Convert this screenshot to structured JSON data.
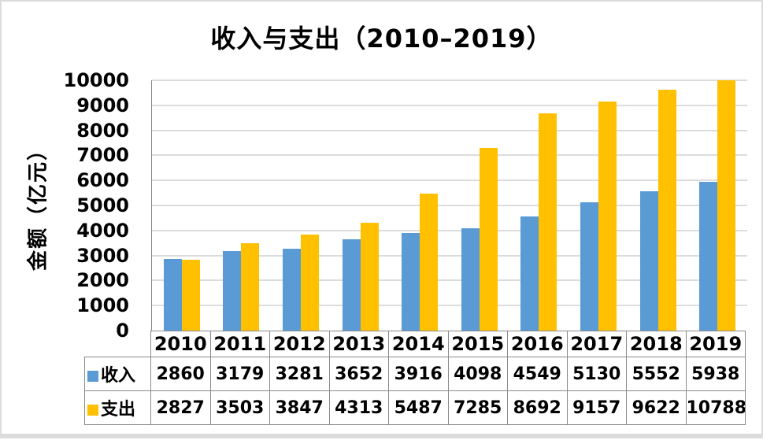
{
  "title": "收入与支出（2010–2019）",
  "chart_data": {
    "type": "bar",
    "title": "收入与支出（2010–2019）",
    "categories": [
      "2010",
      "2011",
      "2012",
      "2013",
      "2014",
      "2015",
      "2016",
      "2017",
      "2018",
      "2019"
    ],
    "series": [
      {
        "name": "收入",
        "color": "#5B9BD5",
        "values": [
          2860,
          3179,
          3281,
          3652,
          3916,
          4098,
          4549,
          5130,
          5552,
          5938
        ]
      },
      {
        "name": "支出",
        "color": "#FFC000",
        "values": [
          2827,
          3503,
          3847,
          4313,
          5487,
          7285,
          8692,
          9157,
          9622,
          10788
        ]
      }
    ],
    "xlabel": "",
    "ylabel": "金额（亿元）",
    "ylim": [
      0,
      10000
    ],
    "ytick_step": 1000,
    "grid": true,
    "legend_position": "table-left"
  },
  "colors": {
    "income": "#5B9BD5",
    "expense": "#FFC000",
    "gridline": "#DCDCDC",
    "axis_line": "#8A8A8A",
    "table_border": "#8A8A8A",
    "text": "#000000",
    "frame_border": "#DCDCDC",
    "background": "#FFFFFF"
  }
}
